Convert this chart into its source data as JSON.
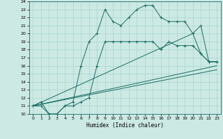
{
  "title": "",
  "xlabel": "Humidex (Indice chaleur)",
  "xlim": [
    -0.5,
    23.5
  ],
  "ylim": [
    10,
    24
  ],
  "yticks": [
    10,
    11,
    12,
    13,
    14,
    15,
    16,
    17,
    18,
    19,
    20,
    21,
    22,
    23,
    24
  ],
  "xticks": [
    0,
    1,
    2,
    3,
    4,
    5,
    6,
    7,
    8,
    9,
    10,
    11,
    12,
    13,
    14,
    15,
    16,
    17,
    18,
    19,
    20,
    21,
    22,
    23
  ],
  "bg_color": "#cce9e4",
  "line_color": "#1a6e63",
  "grid_color": "#a8d5cf",
  "series": [
    {
      "x": [
        0,
        1,
        2,
        3,
        4,
        5,
        6,
        7,
        8,
        9,
        10,
        11,
        12,
        13,
        14,
        15,
        16,
        17,
        18,
        19,
        20,
        21,
        22,
        23
      ],
      "y": [
        11,
        11.5,
        10,
        10,
        11,
        11.5,
        16,
        19,
        20,
        23,
        21.5,
        21,
        22,
        23,
        23.5,
        23.5,
        22,
        21.5,
        21.5,
        21.5,
        20,
        21,
        16.5,
        16.5
      ],
      "markers": true
    },
    {
      "x": [
        0,
        1,
        2,
        3,
        4,
        5,
        6,
        7,
        8,
        9,
        10,
        11,
        12,
        13,
        14,
        15,
        16,
        17,
        18,
        19,
        20,
        21,
        22,
        23
      ],
      "y": [
        11,
        11,
        10,
        10,
        11,
        11,
        11.5,
        12,
        16,
        19,
        19,
        19,
        19,
        19,
        19,
        19,
        18,
        19,
        18.5,
        18.5,
        18.5,
        17.5,
        16.5,
        16.5
      ],
      "markers": true
    },
    {
      "x": [
        0,
        20,
        21,
        22,
        23
      ],
      "y": [
        11,
        20,
        17.5,
        16.5,
        16.5
      ],
      "markers": true
    },
    {
      "x": [
        0,
        23
      ],
      "y": [
        11,
        16
      ],
      "markers": false
    },
    {
      "x": [
        0,
        23
      ],
      "y": [
        11,
        15.5
      ],
      "markers": false
    }
  ]
}
